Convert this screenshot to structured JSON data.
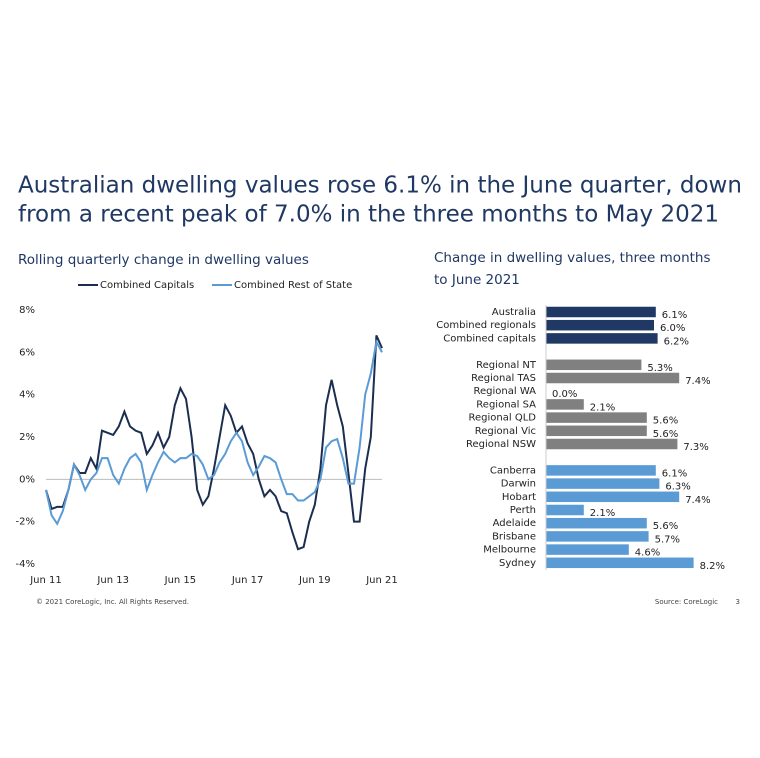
{
  "title": [
    "Australian dwelling values rose 6.1% in the June quarter, down",
    "from a recent peak of 7.0% in the three months to May 2021"
  ],
  "chart_data": [
    {
      "type": "line",
      "title": "Rolling quarterly change in dwelling values",
      "categories": [
        "Jun 11",
        null,
        null,
        null,
        null,
        null,
        null,
        null,
        null,
        null,
        null,
        null,
        "Jun 13",
        null,
        null,
        null,
        null,
        null,
        null,
        null,
        null,
        null,
        null,
        null,
        "Jun 15",
        null,
        null,
        null,
        null,
        null,
        null,
        null,
        null,
        null,
        null,
        null,
        "Jun 17",
        null,
        null,
        null,
        null,
        null,
        null,
        null,
        null,
        null,
        null,
        null,
        "Jun 19",
        null,
        null,
        null,
        null,
        null,
        null,
        null,
        null,
        null,
        null,
        null,
        "Jun 21"
      ],
      "series": [
        {
          "name": "Combined Capitals",
          "color": "#1b2e4f",
          "values": [
            -0.5,
            -1.4,
            -1.3,
            -1.3,
            -0.5,
            0.7,
            0.3,
            0.3,
            1.0,
            0.5,
            2.3,
            2.2,
            2.1,
            2.5,
            3.2,
            2.5,
            2.3,
            2.2,
            1.2,
            1.6,
            2.2,
            1.5,
            2.0,
            3.5,
            4.3,
            3.8,
            2.0,
            -0.5,
            -1.2,
            -0.8,
            0.5,
            2.0,
            3.5,
            3.0,
            2.2,
            2.5,
            1.7,
            1.2,
            0.0,
            -0.8,
            -0.5,
            -0.8,
            -1.5,
            -1.6,
            -2.5,
            -3.3,
            -3.2,
            -2.0,
            -1.2,
            0.5,
            3.5,
            4.7,
            3.5,
            2.5,
            0.3,
            -2.0,
            -2.0,
            0.5,
            2.0,
            6.8,
            6.2
          ]
        },
        {
          "name": "Combined Rest of State",
          "color": "#5b9bd5",
          "values": [
            -0.5,
            -1.7,
            -2.1,
            -1.5,
            -0.5,
            0.7,
            0.2,
            -0.5,
            0.0,
            0.3,
            1.0,
            1.0,
            0.2,
            -0.2,
            0.5,
            1.0,
            1.2,
            0.8,
            -0.5,
            0.2,
            0.8,
            1.3,
            1.0,
            0.8,
            1.0,
            1.0,
            1.2,
            1.1,
            0.7,
            0.0,
            0.2,
            0.8,
            1.2,
            1.8,
            2.2,
            1.8,
            0.8,
            0.2,
            0.6,
            1.1,
            1.0,
            0.8,
            0.0,
            -0.7,
            -0.7,
            -1.0,
            -1.0,
            -0.8,
            -0.6,
            0.0,
            1.5,
            1.8,
            1.9,
            1.0,
            -0.2,
            -0.2,
            1.5,
            4.0,
            5.0,
            6.5,
            6.0
          ]
        }
      ],
      "ylim": [
        -4,
        8
      ],
      "yticks": [
        {
          "value": -4,
          "label": "-4%"
        },
        {
          "value": -2,
          "label": "-2%"
        },
        {
          "value": 0,
          "label": "0%"
        },
        {
          "value": 2,
          "label": "2%"
        },
        {
          "value": 4,
          "label": "4%"
        },
        {
          "value": 6,
          "label": "6%"
        },
        {
          "value": 8,
          "label": "8%"
        }
      ],
      "legend": "top"
    },
    {
      "type": "hbar",
      "title": [
        "Change in dwelling values, three months",
        "to June 2021"
      ],
      "categories": [
        "Australia",
        "Combined regionals",
        "Combined capitals",
        "Regional NT",
        "Regional TAS",
        "Regional WA",
        "Regional SA",
        "Regional QLD",
        "Regional Vic",
        "Regional NSW",
        "Canberra",
        "Darwin",
        "Hobart",
        "Perth",
        "Adelaide",
        "Brisbane",
        "Melbourne",
        "Sydney"
      ],
      "values": [
        6.1,
        6.0,
        6.2,
        5.3,
        7.4,
        0.0,
        2.1,
        5.6,
        5.6,
        7.3,
        6.1,
        6.3,
        7.4,
        2.1,
        5.6,
        5.7,
        4.6,
        8.2
      ],
      "value_labels": [
        "6.1%",
        "6.0%",
        "6.2%",
        "5.3%",
        "7.4%",
        "0.0%",
        "2.1%",
        "5.6%",
        "5.6%",
        "7.3%",
        "6.1%",
        "6.3%",
        "7.4%",
        "2.1%",
        "5.6%",
        "5.7%",
        "4.6%",
        "8.2%"
      ],
      "colors": [
        "#1f3864",
        "#1f3864",
        "#1f3864",
        "#808080",
        "#808080",
        "#808080",
        "#808080",
        "#808080",
        "#808080",
        "#808080",
        "#5b9bd5",
        "#5b9bd5",
        "#5b9bd5",
        "#5b9bd5",
        "#5b9bd5",
        "#5b9bd5",
        "#5b9bd5",
        "#5b9bd5"
      ]
    }
  ],
  "footer": {
    "copyright": "© 2021 CoreLogic,  Inc. All Rights Reserved.",
    "source": "Source: CoreLogic",
    "page": "3"
  }
}
